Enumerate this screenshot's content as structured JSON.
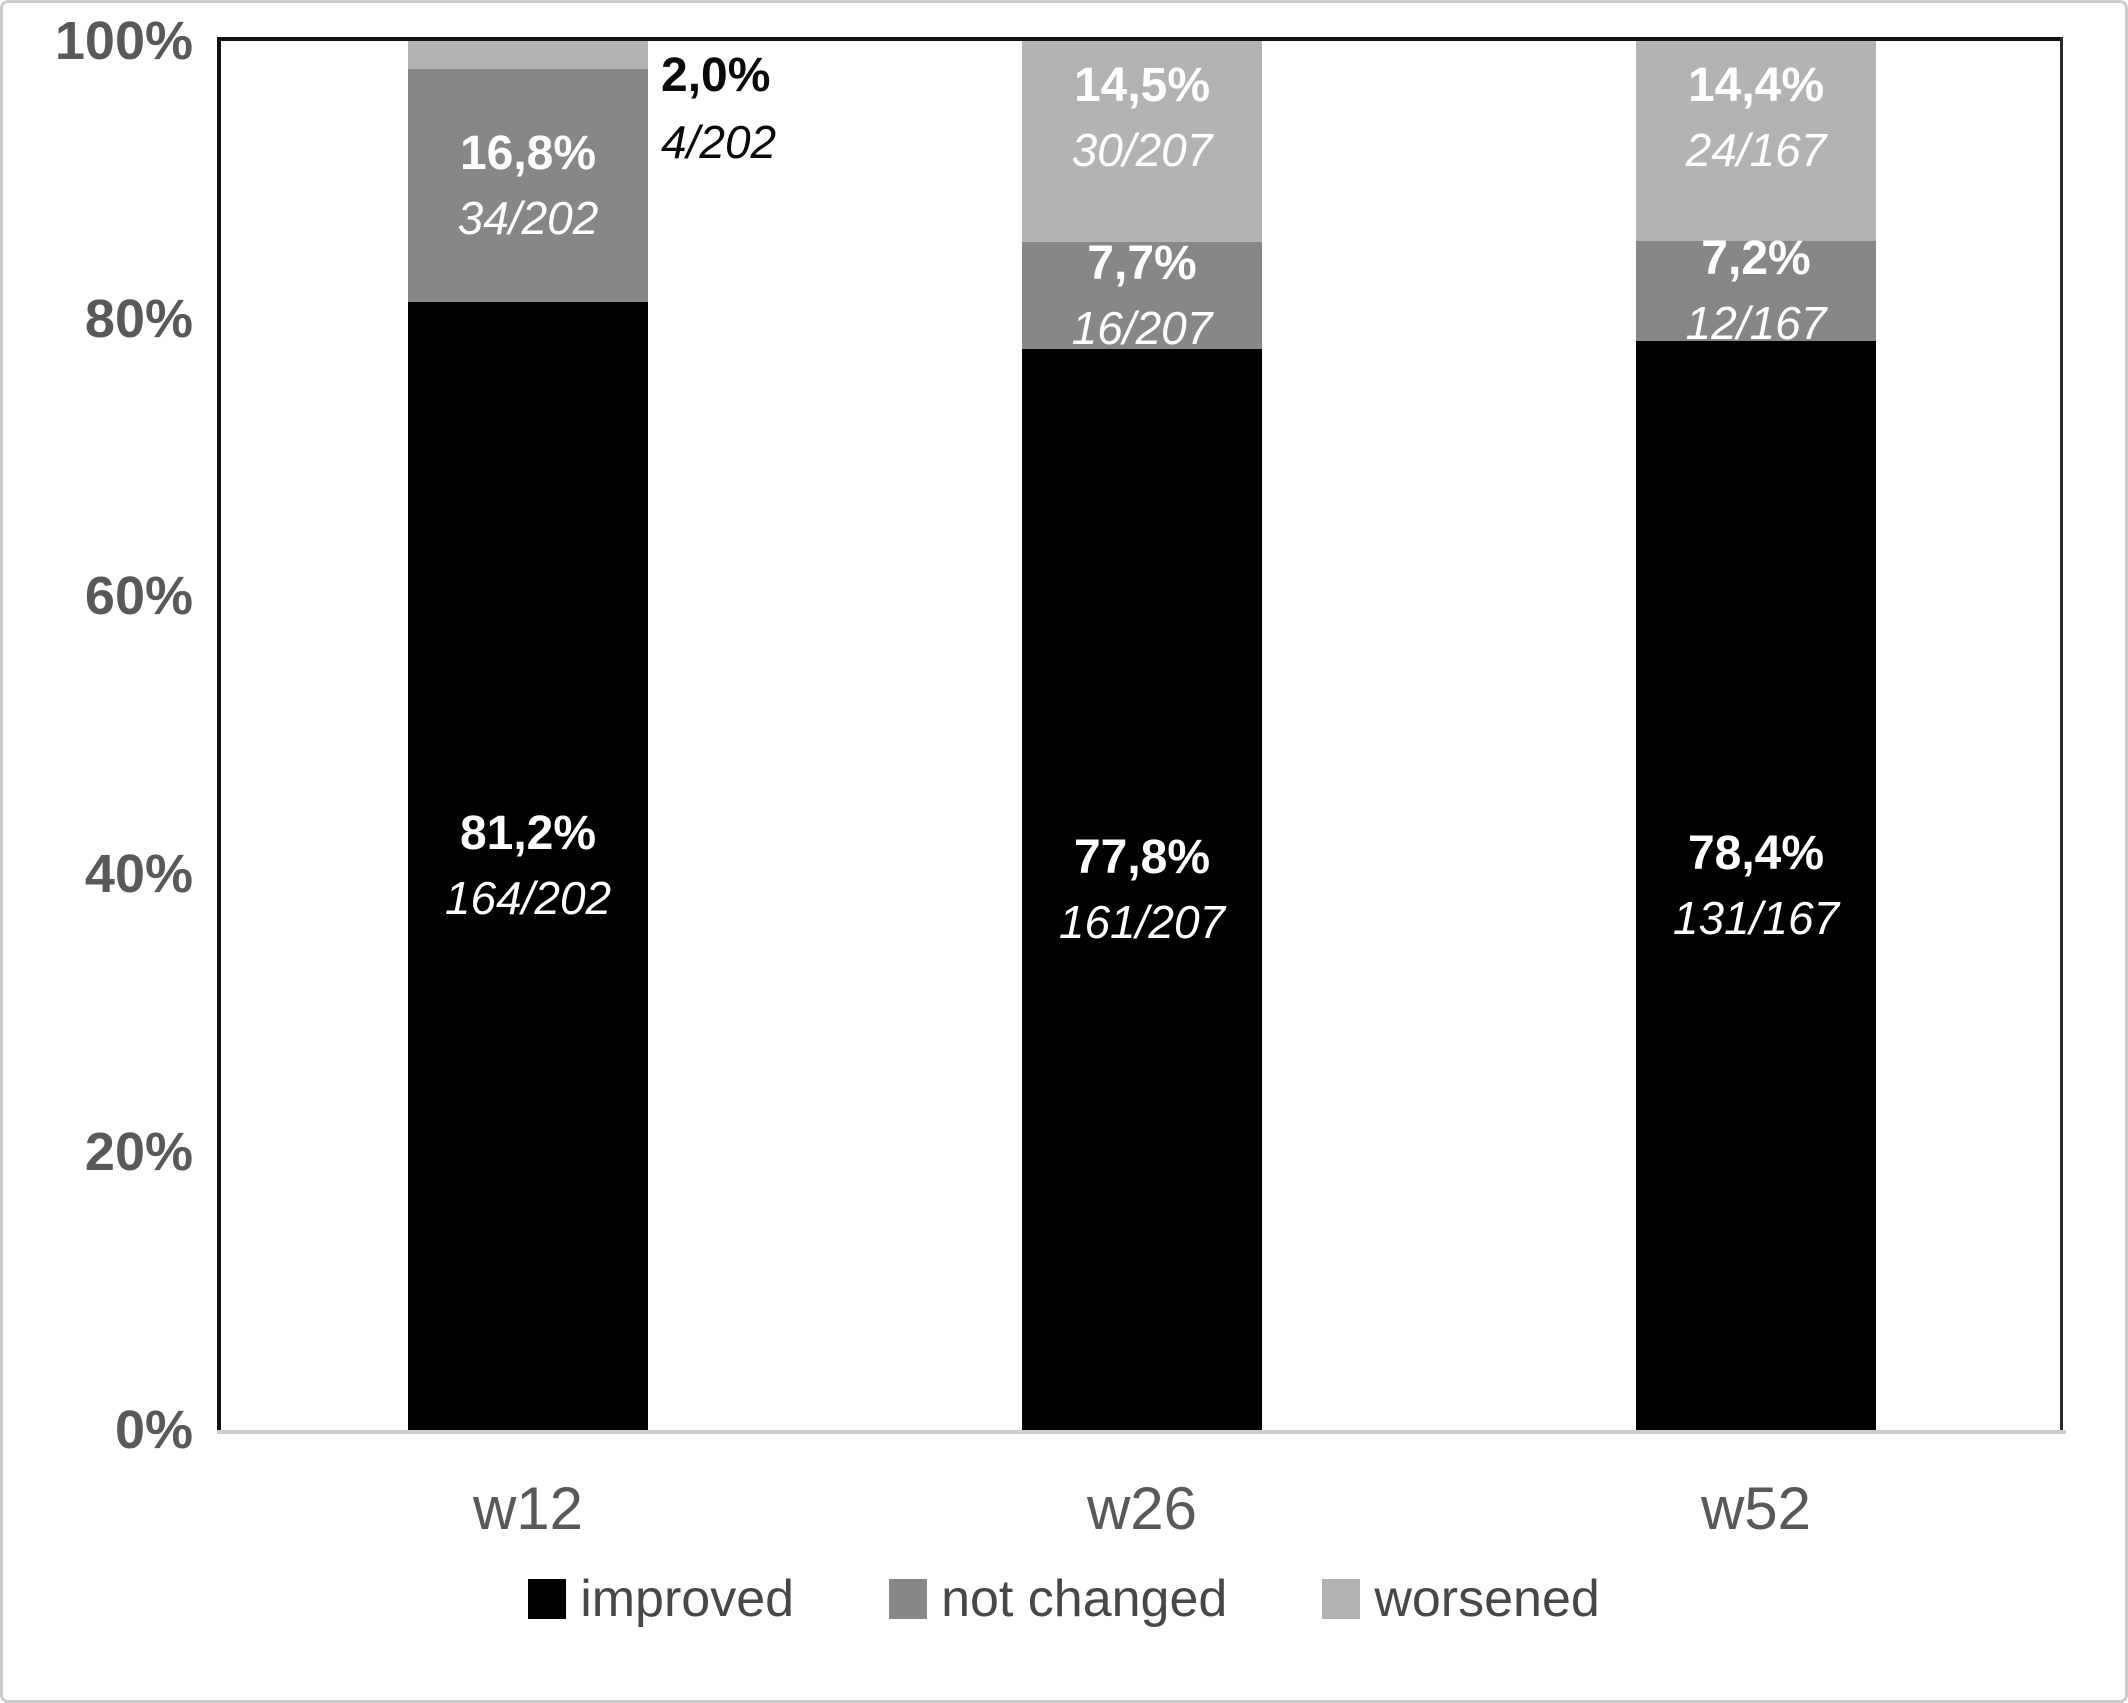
{
  "figure": {
    "background": "#ffffff",
    "border_color": "#cdcdcd"
  },
  "chart_data": {
    "type": "bar",
    "stacked": true,
    "orientation": "vertical",
    "title": "",
    "xlabel": "",
    "ylabel": "",
    "categories": [
      "w12",
      "w26",
      "w52"
    ],
    "y_axis": {
      "ticks": [
        "100%",
        "80%",
        "60%",
        "40%",
        "20%",
        "0%"
      ],
      "min": 0,
      "max": 100,
      "unit": "%"
    },
    "grid": false,
    "legend_position": "bottom",
    "series": [
      {
        "name": "improved",
        "color": "#000000",
        "values": [
          81.2,
          77.8,
          78.4
        ]
      },
      {
        "name": "not changed",
        "color": "#878787",
        "values": [
          16.8,
          7.7,
          7.2
        ]
      },
      {
        "name": "worsened",
        "color": "#b3b3b3",
        "values": [
          2.0,
          14.5,
          14.4
        ]
      }
    ],
    "bars": [
      {
        "category": "w12",
        "denominator": 202,
        "segments": [
          {
            "series": "improved",
            "value": 81.2,
            "pct_label": "81,2%",
            "frac_label": "164/202",
            "label_color": "#ffffff",
            "label_placement": "center"
          },
          {
            "series": "not changed",
            "value": 16.8,
            "pct_label": "16,8%",
            "frac_label": "34/202",
            "label_color": "#ffffff",
            "label_placement": "center"
          },
          {
            "series": "worsened",
            "value": 2.0,
            "pct_label": "2,0%",
            "frac_label": "4/202",
            "label_color": "#000000",
            "label_placement": "outside-right"
          }
        ]
      },
      {
        "category": "w26",
        "denominator": 207,
        "segments": [
          {
            "series": "improved",
            "value": 77.8,
            "pct_label": "77,8%",
            "frac_label": "161/207",
            "label_color": "#ffffff",
            "label_placement": "center"
          },
          {
            "series": "not changed",
            "value": 7.7,
            "pct_label": "7,7%",
            "frac_label": "16/207",
            "label_color": "#ffffff",
            "label_placement": "center"
          },
          {
            "series": "worsened",
            "value": 14.5,
            "pct_label": "14,5%",
            "frac_label": "30/207",
            "label_color": "#ffffff",
            "label_placement": "top"
          }
        ]
      },
      {
        "category": "w52",
        "denominator": 167,
        "segments": [
          {
            "series": "improved",
            "value": 78.4,
            "pct_label": "78,4%",
            "frac_label": "131/167",
            "label_color": "#ffffff",
            "label_placement": "center"
          },
          {
            "series": "not changed",
            "value": 7.2,
            "pct_label": "7,2%",
            "frac_label": "12/167",
            "label_color": "#ffffff",
            "label_placement": "center"
          },
          {
            "series": "worsened",
            "value": 14.4,
            "pct_label": "14,4%",
            "frac_label": "24/167",
            "label_color": "#ffffff",
            "label_placement": "top"
          }
        ]
      }
    ],
    "legend": [
      "improved",
      "not changed",
      "worsened"
    ]
  }
}
